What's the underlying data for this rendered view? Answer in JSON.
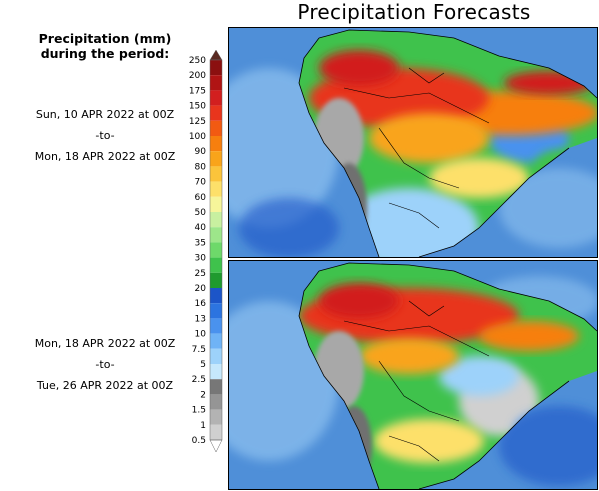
{
  "title": "Precipitation Forecasts",
  "legend": {
    "heading_line1": "Precipitation (mm)",
    "heading_line2": "during the period:",
    "levels": [
      "250",
      "200",
      "175",
      "150",
      "125",
      "100",
      "90",
      "80",
      "70",
      "60",
      "50",
      "40",
      "35",
      "30",
      "25",
      "20",
      "16",
      "13",
      "10",
      "7.5",
      "5",
      "2.5",
      "2",
      "1.5",
      "1",
      "0.5"
    ],
    "colors": [
      "#5a2a22",
      "#8b1010",
      "#b01414",
      "#d21f1f",
      "#e8351d",
      "#f25a12",
      "#f77f0e",
      "#f9a41a",
      "#fbc43b",
      "#fde06a",
      "#f6f59a",
      "#c8f0a0",
      "#9de68a",
      "#6ed96a",
      "#3fc24c",
      "#1f9a2e",
      "#1c55c8",
      "#2c74e0",
      "#4a92ee",
      "#6fb3f6",
      "#9dd2fa",
      "#c6e8fc",
      "#777777",
      "#959595",
      "#b3b3b3",
      "#d0d0d0",
      "#ffffff"
    ]
  },
  "periods": [
    {
      "start": "Sun, 10 APR 2022 at 00Z",
      "sep": "-to-",
      "end": "Mon, 18 APR 2022 at 00Z"
    },
    {
      "start": "Mon, 18 APR 2022 at 00Z",
      "sep": "-to-",
      "end": "Tue, 26 APR 2022 at 00Z"
    }
  ],
  "map_colors": {
    "ocean": "#4f8fd8",
    "ocean_light": "#8fc2f0",
    "dry": "#a8a8a8",
    "dry_dark": "#707070",
    "border": "#000000"
  }
}
